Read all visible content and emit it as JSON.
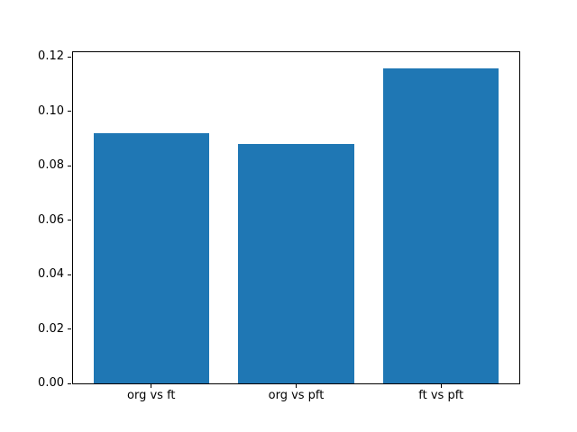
{
  "figure": {
    "background": "#ffffff"
  },
  "chart_data": {
    "type": "bar",
    "categories": [
      "org vs ft",
      "org vs pft",
      "ft vs pft"
    ],
    "values": [
      0.092,
      0.088,
      0.116
    ],
    "title": "",
    "xlabel": "",
    "ylabel": "",
    "ylim": [
      0,
      0.1218
    ],
    "xlim": [
      -0.54,
      2.54
    ],
    "yticks": [
      0.0,
      0.02,
      0.04,
      0.06,
      0.08,
      0.1,
      0.12
    ],
    "ytick_labels": [
      "0.00",
      "0.02",
      "0.04",
      "0.06",
      "0.08",
      "0.10",
      "0.12"
    ],
    "bar_width": 0.8,
    "bar_color": "#1f77b4",
    "grid": false,
    "legend": "none"
  }
}
